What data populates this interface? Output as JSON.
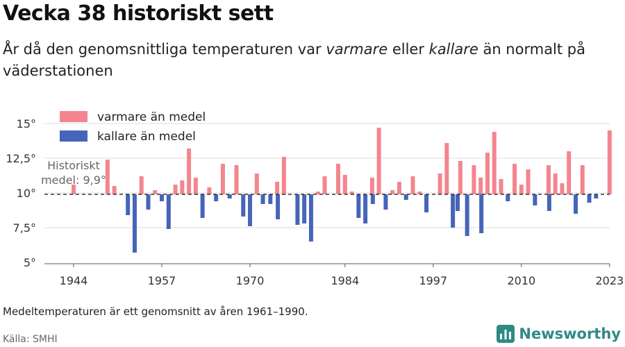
{
  "header": {
    "title": "Vecka 38 historiskt sett",
    "subtitle_pre": "År då den genomsnittliga temperaturen var ",
    "subtitle_warm": "varmare",
    "subtitle_mid": " eller ",
    "subtitle_cold": "kallare",
    "subtitle_post": " än normalt på väderstationen"
  },
  "footer": {
    "note": "Medeltemperaturen är ett genomsnitt av åren 1961–1990.",
    "source": "Källa: SMHI",
    "brand": "Newsworthy"
  },
  "colors": {
    "warm": "#f4858e",
    "cold": "#4565b8",
    "brand": "#2f8a86"
  },
  "chart_data": {
    "type": "bar",
    "baseline": 9.9,
    "baseline_label_line1": "Historiskt",
    "baseline_label_line2": "medel: 9,9°",
    "ylim": [
      5,
      15
    ],
    "y_ticks": [
      {
        "value": 5,
        "label": "5°"
      },
      {
        "value": 7.5,
        "label": "7,5°"
      },
      {
        "value": 10,
        "label": "10°"
      },
      {
        "value": 12.5,
        "label": "12,5°"
      },
      {
        "value": 15,
        "label": "15°"
      }
    ],
    "xlim": [
      1938,
      2027
    ],
    "x_ticks": [
      {
        "value": 1944,
        "label": "1944"
      },
      {
        "value": 1957,
        "label": "1957"
      },
      {
        "value": 1970,
        "label": "1970"
      },
      {
        "value": 1984,
        "label": "1984"
      },
      {
        "value": 1997,
        "label": "1997"
      },
      {
        "value": 2010,
        "label": "2010"
      },
      {
        "value": 2023,
        "label": "2023"
      }
    ],
    "legend": [
      {
        "label": "varmare än medel",
        "color": "#f4858e"
      },
      {
        "label": "kallare än medel",
        "color": "#4565b8"
      }
    ],
    "series": [
      {
        "name": "varmare än medel",
        "points": [
          [
            1944,
            10.6
          ],
          [
            1949,
            12.4
          ],
          [
            1950,
            10.5
          ],
          [
            1954,
            11.2
          ],
          [
            1956,
            10.2
          ],
          [
            1959,
            10.6
          ],
          [
            1960,
            10.9
          ],
          [
            1961,
            13.2
          ],
          [
            1962,
            11.1
          ],
          [
            1964,
            10.4
          ],
          [
            1966,
            12.1
          ],
          [
            1968,
            12.0
          ],
          [
            1971,
            11.4
          ],
          [
            1974,
            10.8
          ],
          [
            1975,
            12.6
          ],
          [
            1980,
            10.1
          ],
          [
            1981,
            11.2
          ],
          [
            1983,
            12.1
          ],
          [
            1984,
            11.3
          ],
          [
            1985,
            10.1
          ],
          [
            1988,
            11.1
          ],
          [
            1989,
            14.7
          ],
          [
            1991,
            10.2
          ],
          [
            1992,
            10.8
          ],
          [
            1994,
            11.2
          ],
          [
            1995,
            10.1
          ],
          [
            1998,
            11.4
          ],
          [
            1999,
            13.6
          ],
          [
            2001,
            12.3
          ],
          [
            2003,
            12.0
          ],
          [
            2004,
            11.1
          ],
          [
            2005,
            12.9
          ],
          [
            2006,
            14.4
          ],
          [
            2007,
            11.0
          ],
          [
            2009,
            12.1
          ],
          [
            2010,
            10.6
          ],
          [
            2011,
            11.7
          ],
          [
            2014,
            12.0
          ],
          [
            2015,
            11.4
          ],
          [
            2016,
            10.7
          ],
          [
            2017,
            13.0
          ],
          [
            2019,
            12.0
          ],
          [
            2023,
            14.5
          ]
        ]
      },
      {
        "name": "kallare än medel",
        "points": [
          [
            1952,
            8.4
          ],
          [
            1953,
            5.7
          ],
          [
            1955,
            8.8
          ],
          [
            1957,
            9.4
          ],
          [
            1958,
            7.4
          ],
          [
            1963,
            8.2
          ],
          [
            1965,
            9.4
          ],
          [
            1967,
            9.6
          ],
          [
            1969,
            8.3
          ],
          [
            1970,
            7.6
          ],
          [
            1971.9,
            9.2
          ],
          [
            1973,
            9.2
          ],
          [
            1974.1,
            8.1
          ],
          [
            1977,
            7.7
          ],
          [
            1978,
            7.8
          ],
          [
            1979,
            6.5
          ],
          [
            1986,
            8.2
          ],
          [
            1987,
            7.8
          ],
          [
            1988.1,
            9.2
          ],
          [
            1990,
            8.8
          ],
          [
            1993,
            9.5
          ],
          [
            1996,
            8.6
          ],
          [
            1999.9,
            7.5
          ],
          [
            2000.6,
            8.7
          ],
          [
            2002,
            6.9
          ],
          [
            2004.1,
            7.1
          ],
          [
            2008,
            9.4
          ],
          [
            2012,
            9.1
          ],
          [
            2014.1,
            8.7
          ],
          [
            2018,
            8.5
          ],
          [
            2020,
            9.3
          ],
          [
            2021,
            9.6
          ]
        ]
      }
    ]
  }
}
